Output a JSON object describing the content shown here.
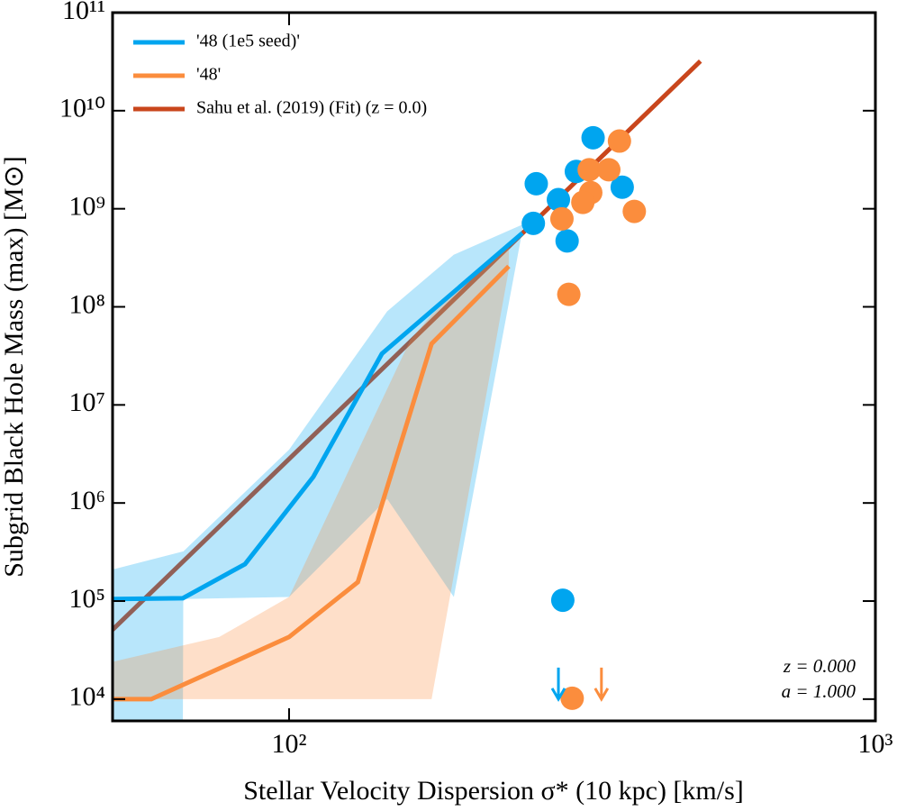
{
  "chart_data": {
    "type": "line",
    "x_label": "Stellar Velocity Dispersion σ* (10 kpc) [km/s]",
    "y_label": "Subgrid Black Hole Mass (max) [M⊙]",
    "log_x": true,
    "log_y": true,
    "xlim": [
      50,
      1000
    ],
    "ylim": [
      6000,
      100000000000
    ],
    "xticks": [
      {
        "value": 100,
        "label": "10²"
      },
      {
        "value": 1000,
        "label": "10³"
      }
    ],
    "yticks": [
      {
        "value": 10000,
        "label": "10⁴"
      },
      {
        "value": 100000,
        "label": "10⁵"
      },
      {
        "value": 1000000,
        "label": "10⁶"
      },
      {
        "value": 10000000,
        "label": "10⁷"
      },
      {
        "value": 100000000,
        "label": "10⁸"
      },
      {
        "value": 1000000000,
        "label": "10⁹"
      },
      {
        "value": 10000000000,
        "label": "10¹⁰"
      },
      {
        "value": 100000000000,
        "label": "10¹¹"
      }
    ],
    "legend": "upper left",
    "series": [
      {
        "name": "'48 (1e5 seed)'",
        "color": "#00a5ef",
        "x": [
          50,
          65.9,
          84.1,
          110,
          144,
          250
        ],
        "values": [
          105000,
          107000,
          238000,
          1850000,
          33300000,
          565000000
        ]
      },
      {
        "name": "'48'",
        "color": "#fb8d3d",
        "x": [
          50,
          58.2,
          100,
          131,
          175,
          237
        ],
        "values": [
          10000,
          10000,
          43000,
          156000,
          42000000,
          259000000
        ]
      },
      {
        "name": "Sahu et al. (2019) (Fit) (z = 0.0)",
        "color": "#c9461c",
        "x": [
          50,
          503
        ],
        "values": [
          51000,
          32000000000
        ]
      }
    ],
    "bands": [
      {
        "color": "#00a5ef",
        "x": [
          50,
          65.9,
          66,
          100,
          147,
          191,
          250
        ],
        "lower": [
          6000,
          6000,
          105000,
          110000,
          1100000,
          110000,
          600000000
        ],
        "upper": [
          210000,
          320000,
          320000,
          3500000,
          90000000,
          340000000,
          690000000
        ]
      },
      {
        "color": "#fb8d3d",
        "x": [
          50,
          76,
          100,
          161,
          175,
          237
        ],
        "lower": [
          10000,
          10000,
          10000,
          10000,
          10000,
          240000000
        ],
        "upper": [
          24000,
          43000,
          110000,
          46000000,
          83000000,
          440000000
        ]
      }
    ],
    "points": [
      {
        "color": "#00a5ef",
        "x": [
          264,
          330,
          309,
          288,
          261,
          298,
          370,
          293
        ],
        "values": [
          1800000000,
          5300000000,
          2400000000,
          1240000000,
          710000000,
          470000000,
          1660000000,
          102000
        ]
      },
      {
        "color": "#fb8d3d",
        "x": [
          366,
          325,
          351,
          327,
          317,
          388,
          292,
          300,
          304
        ],
        "values": [
          4900000000,
          2500000000,
          2500000000,
          1460000000,
          1160000000,
          940000000,
          790000000,
          134000000,
          10200
        ]
      }
    ],
    "limits": [
      {
        "color": "#00a5ef",
        "x": [
          288
        ],
        "values": [
          10000
        ]
      },
      {
        "color": "#fb8d3d",
        "x": [
          341
        ],
        "values": [
          10000
        ]
      }
    ],
    "annotations": [
      "z = 0.000",
      "a = 1.000"
    ]
  }
}
